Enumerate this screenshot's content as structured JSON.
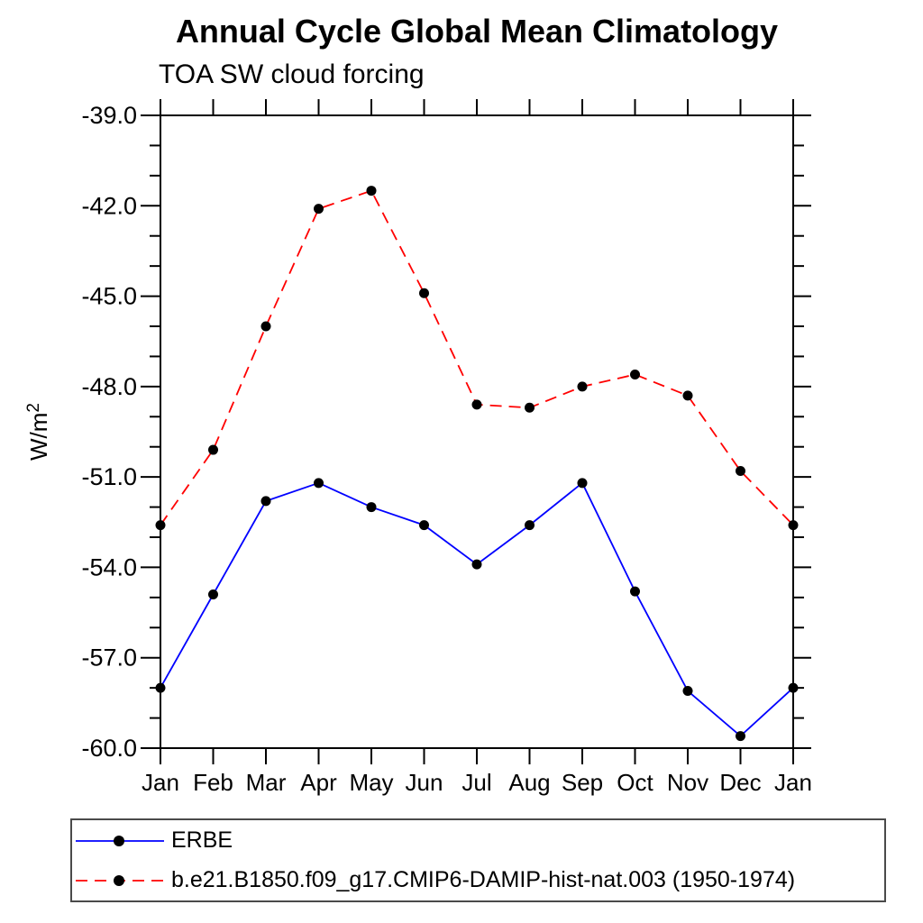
{
  "chart_data": {
    "type": "line",
    "title": "Annual Cycle Global Mean Climatology",
    "subtitle": "TOA SW cloud forcing",
    "ylabel": "W/m²",
    "x_categories": [
      "Jan",
      "Feb",
      "Mar",
      "Apr",
      "May",
      "Jun",
      "Jul",
      "Aug",
      "Sep",
      "Oct",
      "Nov",
      "Dec",
      "Jan"
    ],
    "ylim": [
      -60.0,
      -39.0
    ],
    "ytick_major_interval": 3.0,
    "ytick_minor_interval": 1.0,
    "ytick_labels": [
      "-39.0",
      "-42.0",
      "-45.0",
      "-48.0",
      "-51.0",
      "-54.0",
      "-57.0",
      "-60.0"
    ],
    "grid": false,
    "axis_color": "#000000",
    "legend_position": "bottom-left-box",
    "series": [
      {
        "name": "ERBE",
        "color": "#0000ff",
        "line_style": "solid",
        "marker": "filled-circle",
        "marker_color": "#000000",
        "values": [
          -58.0,
          -54.9,
          -51.8,
          -51.2,
          -52.0,
          -52.6,
          -53.9,
          -52.6,
          -51.2,
          -54.8,
          -58.1,
          -59.6,
          -58.0
        ]
      },
      {
        "name": "b.e21.B1850.f09_g17.CMIP6-DAMIP-hist-nat.003 (1950-1974)",
        "color": "#ff0000",
        "line_style": "dashed",
        "marker": "filled-circle",
        "marker_color": "#000000",
        "values": [
          -52.6,
          -50.1,
          -46.0,
          -42.1,
          -41.5,
          -44.9,
          -48.6,
          -48.7,
          -48.0,
          -47.6,
          -48.3,
          -50.8,
          -52.6
        ]
      }
    ]
  }
}
